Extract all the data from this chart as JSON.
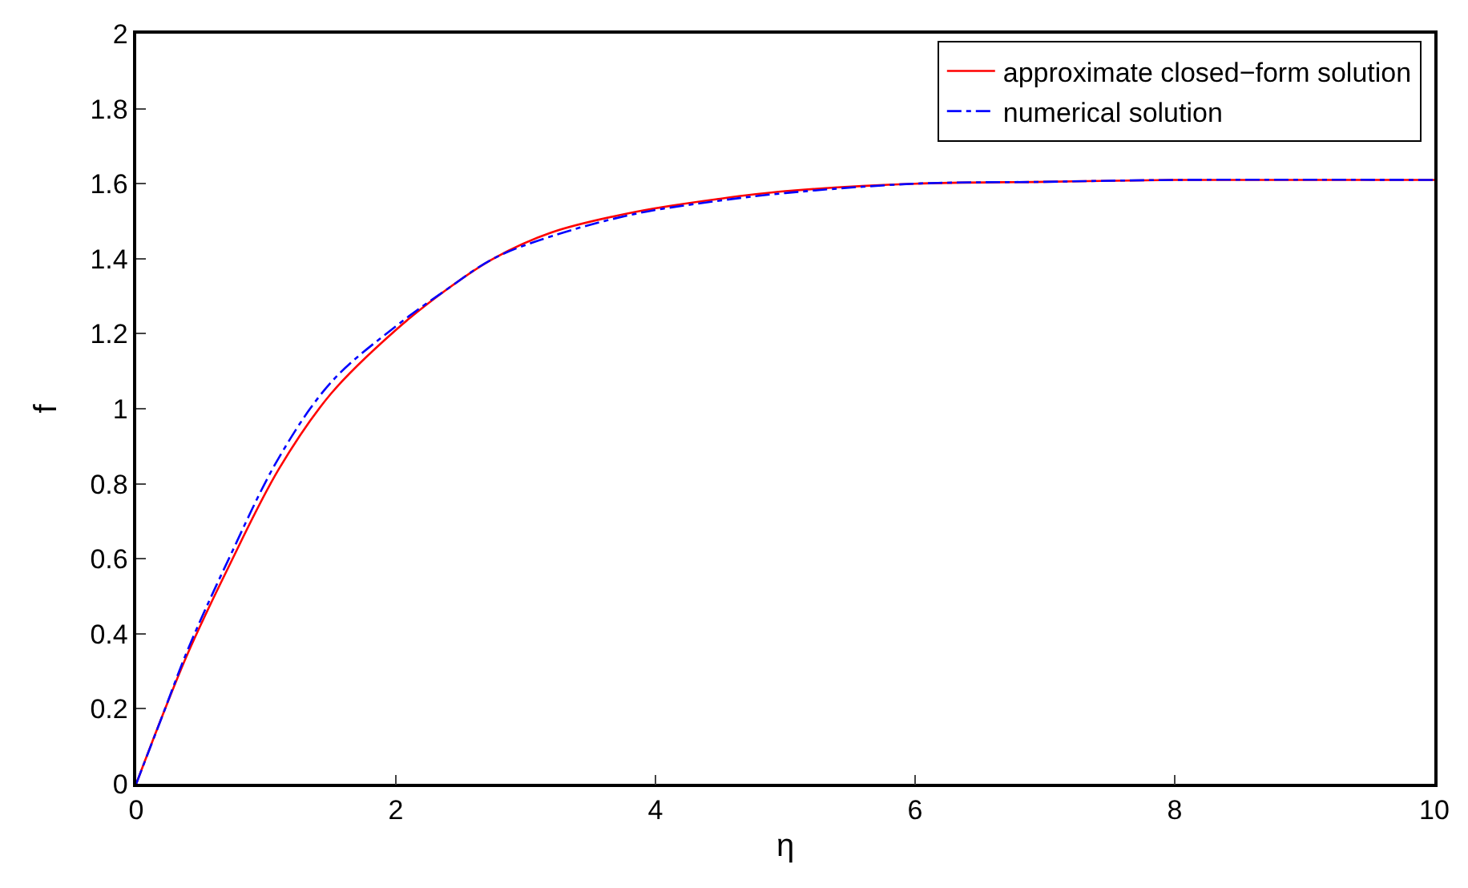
{
  "chart_data": {
    "type": "line",
    "xlabel": "η",
    "ylabel": "f",
    "xlim": [
      0,
      10
    ],
    "ylim": [
      0,
      2
    ],
    "xticks": [
      0,
      2,
      4,
      6,
      8,
      10
    ],
    "yticks": [
      0,
      0.2,
      0.4,
      0.6,
      0.8,
      1,
      1.2,
      1.4,
      1.6,
      1.8,
      2
    ],
    "legend": "top right",
    "marker": "none",
    "x": [
      0,
      0.2,
      0.4,
      0.7,
      1.1,
      1.5,
      2,
      2.4,
      2.75,
      3.2,
      3.85,
      4.5,
      5,
      6,
      7,
      8,
      10
    ],
    "series": [
      {
        "name": "approximate closed−form solution",
        "color": "#ff0000",
        "line_style": "solid",
        "values": [
          0,
          0.18,
          0.35,
          0.57,
          0.84,
          1.04,
          1.21,
          1.32,
          1.4,
          1.47,
          1.525,
          1.56,
          1.58,
          1.6,
          1.605,
          1.61,
          1.61
        ]
      },
      {
        "name": "numerical solution",
        "color": "#0000ff",
        "line_style": "dashdot",
        "values": [
          0,
          0.18,
          0.36,
          0.59,
          0.87,
          1.07,
          1.22,
          1.32,
          1.4,
          1.46,
          1.52,
          1.555,
          1.575,
          1.6,
          1.605,
          1.61,
          1.61
        ]
      }
    ]
  }
}
